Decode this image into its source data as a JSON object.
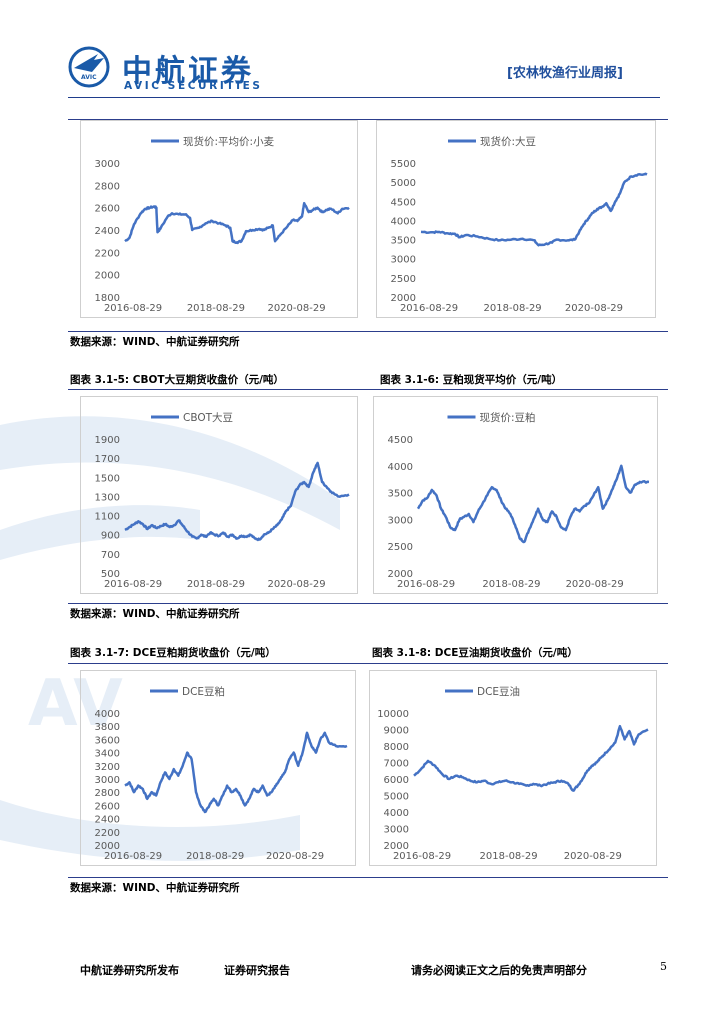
{
  "header": {
    "logo_cn": "中航证券",
    "logo_en": "AVIC SECURITIES",
    "logo_badge": "AVIC",
    "report_title": "[农林牧渔行业周报]",
    "watermark": "AV"
  },
  "sources": {
    "s1": "数据来源：WIND、中航证券研究所",
    "s2": "数据来源：WIND、中航证券研究所",
    "s3": "数据来源：WIND、中航证券研究所"
  },
  "captions": {
    "c5": "图表 3.1-5:  CBOT大豆期货收盘价（元/吨）",
    "c6": "图表 3.1-6:  豆粕现货平均价（元/吨）",
    "c7": "图表 3.1-7:  DCE豆粕期货收盘价（元/吨）",
    "c8": "图表 3.1-8:  DCE豆油期货收盘价（元/吨）"
  },
  "footer": {
    "publisher": "中航证券研究所发布",
    "report_type": "证券研究报告",
    "disclaimer": "请务必阅读正文之后的免责声明部分",
    "page": "5"
  },
  "line_color": "#4472c4",
  "chart_data": [
    {
      "id": "wheat",
      "type": "line",
      "name": "现货价:平均价:小麦",
      "x_ticks": [
        "2016-08-29",
        "2018-08-29",
        "2020-08-29"
      ],
      "y_ticks": [
        "3000",
        "2800",
        "2600",
        "2400",
        "2200",
        "2000",
        "1800"
      ],
      "ylim": [
        1800,
        3000
      ],
      "points": [
        [
          0,
          2300
        ],
        [
          0.02,
          2330
        ],
        [
          0.04,
          2450
        ],
        [
          0.07,
          2550
        ],
        [
          0.09,
          2590
        ],
        [
          0.11,
          2600
        ],
        [
          0.13,
          2610
        ],
        [
          0.14,
          2600
        ],
        [
          0.145,
          2380
        ],
        [
          0.16,
          2420
        ],
        [
          0.19,
          2520
        ],
        [
          0.21,
          2550
        ],
        [
          0.24,
          2540
        ],
        [
          0.27,
          2540
        ],
        [
          0.29,
          2510
        ],
        [
          0.3,
          2400
        ],
        [
          0.33,
          2420
        ],
        [
          0.36,
          2460
        ],
        [
          0.39,
          2480
        ],
        [
          0.42,
          2460
        ],
        [
          0.45,
          2440
        ],
        [
          0.47,
          2420
        ],
        [
          0.48,
          2300
        ],
        [
          0.5,
          2290
        ],
        [
          0.52,
          2300
        ],
        [
          0.54,
          2390
        ],
        [
          0.57,
          2400
        ],
        [
          0.6,
          2410
        ],
        [
          0.62,
          2400
        ],
        [
          0.64,
          2420
        ],
        [
          0.66,
          2440
        ],
        [
          0.67,
          2300
        ],
        [
          0.69,
          2350
        ],
        [
          0.72,
          2420
        ],
        [
          0.75,
          2490
        ],
        [
          0.77,
          2480
        ],
        [
          0.79,
          2520
        ],
        [
          0.8,
          2640
        ],
        [
          0.82,
          2560
        ],
        [
          0.84,
          2580
        ],
        [
          0.86,
          2600
        ],
        [
          0.88,
          2560
        ],
        [
          0.9,
          2580
        ],
        [
          0.92,
          2590
        ],
        [
          0.95,
          2550
        ],
        [
          0.97,
          2590
        ],
        [
          1.0,
          2600
        ]
      ]
    },
    {
      "id": "soybean",
      "type": "line",
      "name": "现货价:大豆",
      "x_ticks": [
        "2016-08-29",
        "2018-08-29",
        "2020-08-29"
      ],
      "y_ticks": [
        "5500",
        "5000",
        "4500",
        "4000",
        "3500",
        "3000",
        "2500",
        "2000"
      ],
      "ylim": [
        2000,
        5500
      ],
      "points": [
        [
          0,
          3700
        ],
        [
          0.05,
          3690
        ],
        [
          0.08,
          3700
        ],
        [
          0.12,
          3660
        ],
        [
          0.15,
          3650
        ],
        [
          0.17,
          3560
        ],
        [
          0.2,
          3620
        ],
        [
          0.25,
          3580
        ],
        [
          0.3,
          3520
        ],
        [
          0.35,
          3480
        ],
        [
          0.4,
          3500
        ],
        [
          0.45,
          3520
        ],
        [
          0.5,
          3480
        ],
        [
          0.52,
          3350
        ],
        [
          0.55,
          3380
        ],
        [
          0.58,
          3420
        ],
        [
          0.6,
          3500
        ],
        [
          0.65,
          3480
        ],
        [
          0.68,
          3500
        ],
        [
          0.7,
          3700
        ],
        [
          0.72,
          3900
        ],
        [
          0.74,
          4050
        ],
        [
          0.76,
          4200
        ],
        [
          0.78,
          4300
        ],
        [
          0.8,
          4350
        ],
        [
          0.82,
          4450
        ],
        [
          0.84,
          4250
        ],
        [
          0.86,
          4500
        ],
        [
          0.88,
          4700
        ],
        [
          0.9,
          5000
        ],
        [
          0.93,
          5150
        ],
        [
          0.96,
          5200
        ],
        [
          1.0,
          5200
        ]
      ]
    },
    {
      "id": "cbot",
      "type": "line",
      "name": "CBOT大豆",
      "x_ticks": [
        "2016-08-29",
        "2018-08-29",
        "2020-08-29"
      ],
      "y_ticks": [
        "1900",
        "1700",
        "1500",
        "1300",
        "1100",
        "900",
        "700",
        "500"
      ],
      "ylim": [
        500,
        1900
      ],
      "points": [
        [
          0,
          950
        ],
        [
          0.02,
          980
        ],
        [
          0.04,
          1010
        ],
        [
          0.06,
          1040
        ],
        [
          0.08,
          1010
        ],
        [
          0.1,
          960
        ],
        [
          0.12,
          1000
        ],
        [
          0.14,
          970
        ],
        [
          0.16,
          990
        ],
        [
          0.18,
          1010
        ],
        [
          0.2,
          980
        ],
        [
          0.22,
          1000
        ],
        [
          0.24,
          1050
        ],
        [
          0.26,
          990
        ],
        [
          0.28,
          930
        ],
        [
          0.3,
          880
        ],
        [
          0.32,
          860
        ],
        [
          0.34,
          900
        ],
        [
          0.36,
          880
        ],
        [
          0.38,
          920
        ],
        [
          0.4,
          900
        ],
        [
          0.42,
          890
        ],
        [
          0.44,
          920
        ],
        [
          0.46,
          880
        ],
        [
          0.48,
          900
        ],
        [
          0.5,
          860
        ],
        [
          0.52,
          890
        ],
        [
          0.54,
          880
        ],
        [
          0.56,
          900
        ],
        [
          0.58,
          860
        ],
        [
          0.6,
          850
        ],
        [
          0.62,
          900
        ],
        [
          0.64,
          920
        ],
        [
          0.66,
          960
        ],
        [
          0.68,
          1000
        ],
        [
          0.7,
          1060
        ],
        [
          0.72,
          1150
        ],
        [
          0.74,
          1200
        ],
        [
          0.76,
          1350
        ],
        [
          0.78,
          1420
        ],
        [
          0.8,
          1450
        ],
        [
          0.82,
          1400
        ],
        [
          0.84,
          1550
        ],
        [
          0.86,
          1650
        ],
        [
          0.88,
          1450
        ],
        [
          0.9,
          1400
        ],
        [
          0.92,
          1350
        ],
        [
          0.95,
          1300
        ],
        [
          1.0,
          1320
        ]
      ]
    },
    {
      "id": "meal_spot",
      "type": "line",
      "name": "现货价:豆粕",
      "x_ticks": [
        "2016-08-29",
        "2018-08-29",
        "2020-08-29"
      ],
      "y_ticks": [
        "4500",
        "4000",
        "3500",
        "3000",
        "2500",
        "2000"
      ],
      "ylim": [
        2000,
        4500
      ],
      "points": [
        [
          0,
          3200
        ],
        [
          0.02,
          3350
        ],
        [
          0.04,
          3400
        ],
        [
          0.06,
          3550
        ],
        [
          0.08,
          3450
        ],
        [
          0.1,
          3200
        ],
        [
          0.12,
          3050
        ],
        [
          0.14,
          2850
        ],
        [
          0.16,
          2800
        ],
        [
          0.18,
          3000
        ],
        [
          0.2,
          3050
        ],
        [
          0.22,
          3100
        ],
        [
          0.24,
          2950
        ],
        [
          0.26,
          3150
        ],
        [
          0.28,
          3300
        ],
        [
          0.3,
          3450
        ],
        [
          0.32,
          3600
        ],
        [
          0.34,
          3550
        ],
        [
          0.36,
          3350
        ],
        [
          0.38,
          3200
        ],
        [
          0.4,
          3100
        ],
        [
          0.42,
          2900
        ],
        [
          0.44,
          2650
        ],
        [
          0.46,
          2580
        ],
        [
          0.48,
          2800
        ],
        [
          0.5,
          3000
        ],
        [
          0.52,
          3200
        ],
        [
          0.54,
          3000
        ],
        [
          0.56,
          2950
        ],
        [
          0.58,
          3150
        ],
        [
          0.6,
          3050
        ],
        [
          0.62,
          2850
        ],
        [
          0.64,
          2800
        ],
        [
          0.66,
          3050
        ],
        [
          0.68,
          3200
        ],
        [
          0.7,
          3150
        ],
        [
          0.72,
          3250
        ],
        [
          0.74,
          3300
        ],
        [
          0.76,
          3450
        ],
        [
          0.78,
          3600
        ],
        [
          0.8,
          3200
        ],
        [
          0.82,
          3350
        ],
        [
          0.84,
          3550
        ],
        [
          0.86,
          3750
        ],
        [
          0.88,
          4000
        ],
        [
          0.9,
          3600
        ],
        [
          0.92,
          3500
        ],
        [
          0.94,
          3650
        ],
        [
          0.96,
          3700
        ],
        [
          1.0,
          3700
        ]
      ]
    },
    {
      "id": "dce_meal",
      "type": "line",
      "name": "DCE豆粕",
      "x_ticks": [
        "2016-08-29",
        "2018-08-29",
        "2020-08-29"
      ],
      "y_ticks": [
        "4000",
        "3800",
        "3600",
        "3400",
        "3200",
        "3000",
        "2800",
        "2600",
        "2400",
        "2200",
        "2000"
      ],
      "ylim": [
        2000,
        4000
      ],
      "points": [
        [
          0,
          2900
        ],
        [
          0.02,
          2950
        ],
        [
          0.04,
          2800
        ],
        [
          0.06,
          2900
        ],
        [
          0.08,
          2850
        ],
        [
          0.1,
          2700
        ],
        [
          0.12,
          2800
        ],
        [
          0.14,
          2750
        ],
        [
          0.16,
          2950
        ],
        [
          0.18,
          3100
        ],
        [
          0.2,
          3000
        ],
        [
          0.22,
          3150
        ],
        [
          0.24,
          3050
        ],
        [
          0.26,
          3200
        ],
        [
          0.28,
          3400
        ],
        [
          0.3,
          3300
        ],
        [
          0.32,
          2800
        ],
        [
          0.34,
          2600
        ],
        [
          0.36,
          2500
        ],
        [
          0.38,
          2600
        ],
        [
          0.4,
          2700
        ],
        [
          0.42,
          2600
        ],
        [
          0.44,
          2750
        ],
        [
          0.46,
          2900
        ],
        [
          0.48,
          2800
        ],
        [
          0.5,
          2850
        ],
        [
          0.52,
          2750
        ],
        [
          0.54,
          2600
        ],
        [
          0.56,
          2700
        ],
        [
          0.58,
          2850
        ],
        [
          0.6,
          2800
        ],
        [
          0.62,
          2900
        ],
        [
          0.64,
          2750
        ],
        [
          0.66,
          2800
        ],
        [
          0.68,
          2900
        ],
        [
          0.7,
          3000
        ],
        [
          0.72,
          3100
        ],
        [
          0.74,
          3300
        ],
        [
          0.76,
          3400
        ],
        [
          0.78,
          3200
        ],
        [
          0.8,
          3400
        ],
        [
          0.82,
          3700
        ],
        [
          0.84,
          3500
        ],
        [
          0.86,
          3400
        ],
        [
          0.88,
          3600
        ],
        [
          0.9,
          3700
        ],
        [
          0.92,
          3550
        ],
        [
          0.95,
          3500
        ],
        [
          1.0,
          3500
        ]
      ]
    },
    {
      "id": "dce_oil",
      "type": "line",
      "name": "DCE豆油",
      "x_ticks": [
        "2016-08-29",
        "2018-08-29",
        "2020-08-29"
      ],
      "y_ticks": [
        "10000",
        "9000",
        "8000",
        "7000",
        "6000",
        "5000",
        "4000",
        "3000",
        "2000"
      ],
      "ylim": [
        2000,
        10000
      ],
      "points": [
        [
          0,
          6200
        ],
        [
          0.03,
          6600
        ],
        [
          0.06,
          7100
        ],
        [
          0.09,
          6800
        ],
        [
          0.12,
          6300
        ],
        [
          0.15,
          6000
        ],
        [
          0.18,
          6200
        ],
        [
          0.21,
          6100
        ],
        [
          0.24,
          5900
        ],
        [
          0.27,
          5800
        ],
        [
          0.3,
          5900
        ],
        [
          0.33,
          5700
        ],
        [
          0.36,
          5800
        ],
        [
          0.39,
          5900
        ],
        [
          0.42,
          5800
        ],
        [
          0.45,
          5700
        ],
        [
          0.48,
          5600
        ],
        [
          0.51,
          5700
        ],
        [
          0.54,
          5600
        ],
        [
          0.57,
          5700
        ],
        [
          0.6,
          5800
        ],
        [
          0.63,
          5900
        ],
        [
          0.66,
          5700
        ],
        [
          0.68,
          5300
        ],
        [
          0.7,
          5600
        ],
        [
          0.72,
          6000
        ],
        [
          0.74,
          6500
        ],
        [
          0.76,
          6800
        ],
        [
          0.78,
          7000
        ],
        [
          0.8,
          7300
        ],
        [
          0.82,
          7600
        ],
        [
          0.84,
          7900
        ],
        [
          0.86,
          8200
        ],
        [
          0.88,
          9200
        ],
        [
          0.9,
          8400
        ],
        [
          0.92,
          8900
        ],
        [
          0.94,
          8100
        ],
        [
          0.96,
          8700
        ],
        [
          1.0,
          9000
        ]
      ]
    }
  ]
}
